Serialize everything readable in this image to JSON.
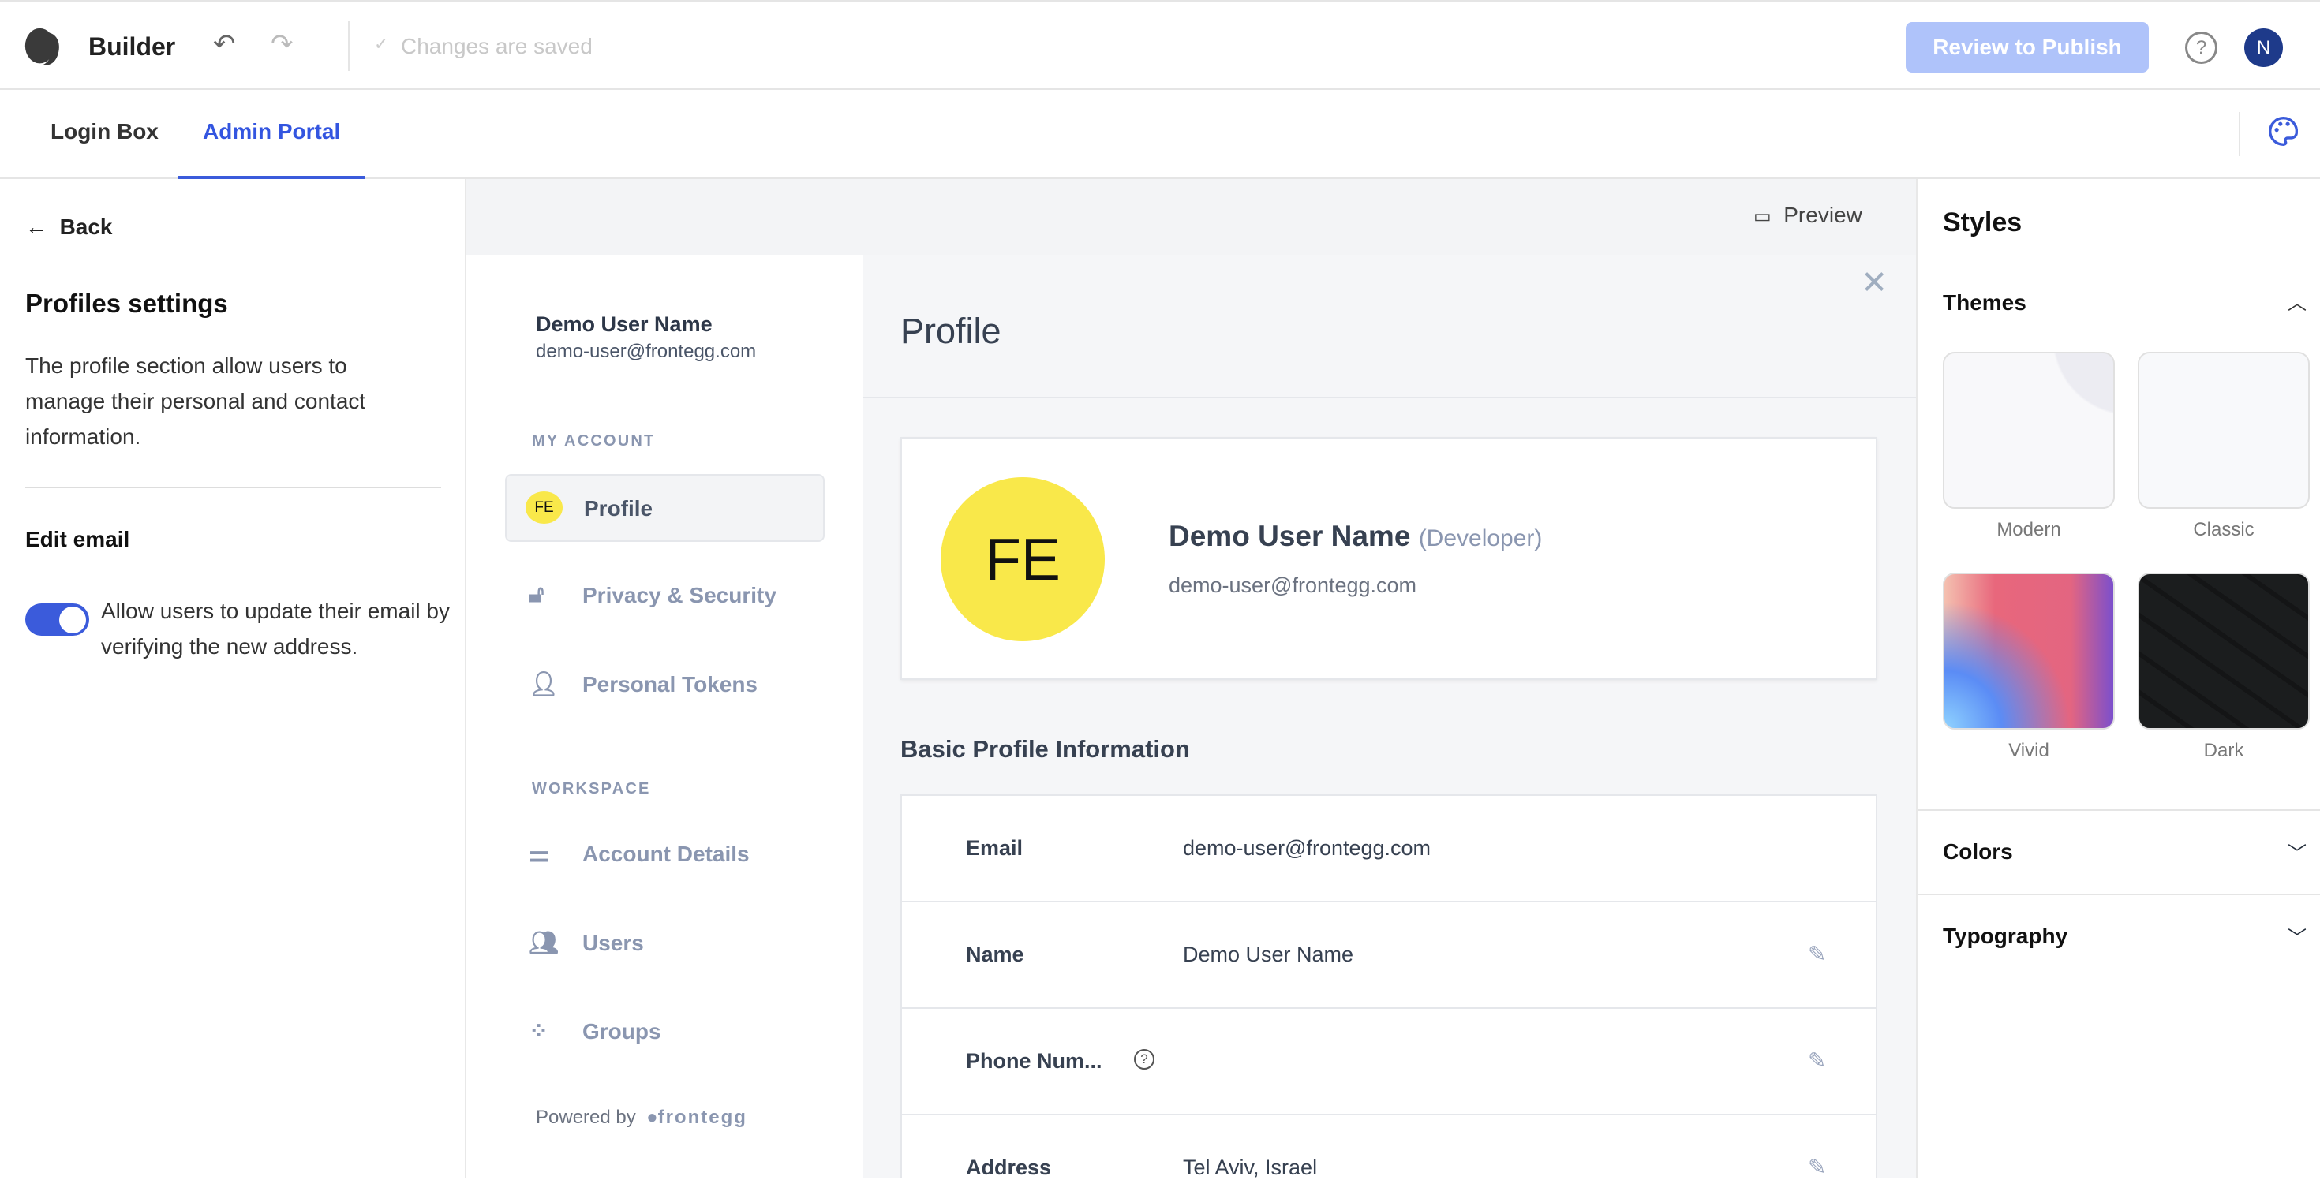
{
  "app": {
    "title": "Builder",
    "saved_status": "Changes are saved",
    "publish_label": "Review to Publish",
    "avatar_initial": "N",
    "accent": "#3b5bdb"
  },
  "tabs": [
    {
      "label": "Login Box",
      "active": false
    },
    {
      "label": "Admin Portal",
      "active": true
    }
  ],
  "left": {
    "back": "Back",
    "title": "Profiles settings",
    "description": "The profile section allow users to manage their personal and contact information.",
    "edit_email_title": "Edit email",
    "toggle_label": "Allow users to update their email by verifying the new address.",
    "toggle_on": true
  },
  "preview": {
    "label": "Preview",
    "user": {
      "name": "Demo User Name",
      "email": "demo-user@frontegg.com",
      "initials": "FE",
      "role": "(Developer)"
    },
    "sections": [
      {
        "title": "MY ACCOUNT",
        "items": [
          "Profile",
          "Privacy & Security",
          "Personal Tokens"
        ]
      },
      {
        "title": "WORKSPACE",
        "items": [
          "Account Details",
          "Users",
          "Groups"
        ]
      }
    ],
    "powered_by": "Powered by",
    "brand": "frontegg",
    "page_title": "Profile",
    "basic_title": "Basic Profile Information",
    "rows": [
      {
        "label": "Email",
        "value": "demo-user@frontegg.com"
      },
      {
        "label": "Name",
        "value": "Demo User Name"
      },
      {
        "label": "Phone Num...",
        "value": ""
      },
      {
        "label": "Address",
        "value": "Tel Aviv, Israel"
      }
    ]
  },
  "styles": {
    "title": "Styles",
    "themes_title": "Themes",
    "themes": [
      "Modern",
      "Classic",
      "Vivid",
      "Dark"
    ],
    "colors_title": "Colors",
    "typography_title": "Typography"
  }
}
